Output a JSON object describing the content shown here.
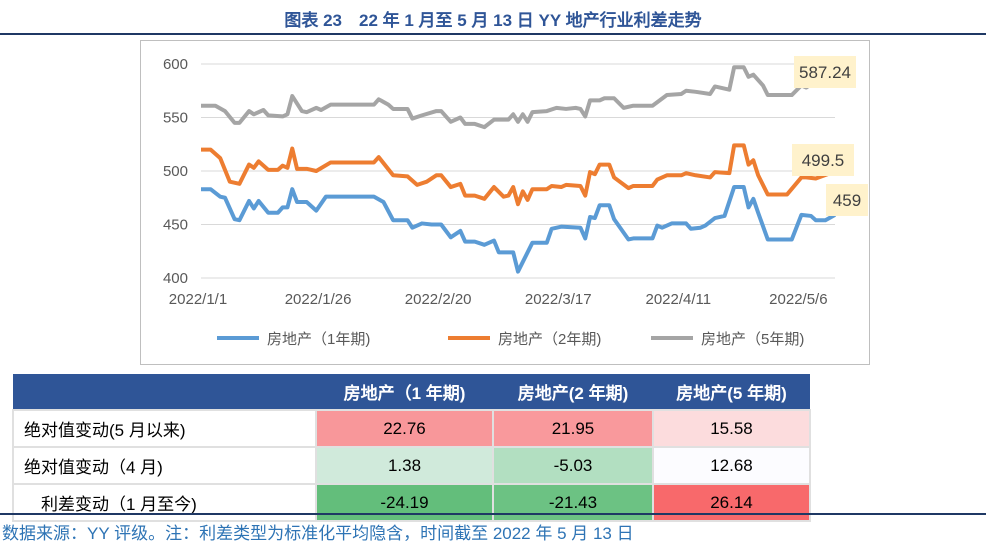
{
  "title": "图表 23　22 年 1 月至 5 月 13 日 YY 地产行业利差走势",
  "chart_data": {
    "type": "line",
    "ylim": [
      400,
      600
    ],
    "yticks": [
      400,
      450,
      500,
      550,
      600
    ],
    "xlim": [
      "2022/1/1",
      "2022/5/13"
    ],
    "xticks": [
      "2022/1/1",
      "2022/1/26",
      "2022/2/20",
      "2022/3/17",
      "2022/4/11",
      "2022/5/6"
    ],
    "grid": true,
    "legend": "bottom",
    "series": [
      {
        "name": "房地产（1年期)",
        "color": "#5b9bd5",
        "end_label": "459",
        "points": [
          [
            "1/1",
            483
          ],
          [
            "1/3",
            483
          ],
          [
            "1/5",
            476
          ],
          [
            "1/6",
            475
          ],
          [
            "1/8",
            455
          ],
          [
            "1/9",
            454
          ],
          [
            "1/11",
            472
          ],
          [
            "1/12",
            465
          ],
          [
            "1/13",
            472
          ],
          [
            "1/15",
            461
          ],
          [
            "1/17",
            461
          ],
          [
            "1/18",
            466
          ],
          [
            "1/19",
            466
          ],
          [
            "1/20",
            483
          ],
          [
            "1/21",
            471
          ],
          [
            "1/23",
            471
          ],
          [
            "1/25",
            463
          ],
          [
            "1/27",
            476
          ],
          [
            "2/6",
            476
          ],
          [
            "2/8",
            471
          ],
          [
            "2/10",
            454
          ],
          [
            "2/13",
            454
          ],
          [
            "2/14",
            447
          ],
          [
            "2/16",
            451
          ],
          [
            "2/18",
            450
          ],
          [
            "2/20",
            450
          ],
          [
            "2/22",
            438
          ],
          [
            "2/24",
            444
          ],
          [
            "2/25",
            434
          ],
          [
            "2/27",
            434
          ],
          [
            "3/1",
            431
          ],
          [
            "3/3",
            435
          ],
          [
            "3/4",
            424
          ],
          [
            "3/7",
            424
          ],
          [
            "3/8",
            406
          ],
          [
            "3/9",
            415
          ],
          [
            "3/11",
            433
          ],
          [
            "3/14",
            433
          ],
          [
            "3/15",
            446
          ],
          [
            "3/17",
            448
          ],
          [
            "3/21",
            447
          ],
          [
            "3/22",
            437
          ],
          [
            "3/23",
            457
          ],
          [
            "3/24",
            456
          ],
          [
            "3/25",
            468
          ],
          [
            "3/27",
            468
          ],
          [
            "3/28",
            455
          ],
          [
            "3/31",
            436
          ],
          [
            "4/1",
            437
          ],
          [
            "4/5",
            437
          ],
          [
            "4/6",
            449
          ],
          [
            "4/7",
            447
          ],
          [
            "4/9",
            451
          ],
          [
            "4/12",
            451
          ],
          [
            "4/13",
            446
          ],
          [
            "4/15",
            447
          ],
          [
            "4/16",
            449
          ],
          [
            "4/18",
            456
          ],
          [
            "4/20",
            458
          ],
          [
            "4/22",
            485
          ],
          [
            "4/24",
            485
          ],
          [
            "4/25",
            466
          ],
          [
            "4/26",
            474
          ],
          [
            "4/27",
            461
          ],
          [
            "4/29",
            436
          ],
          [
            "5/4",
            436
          ],
          [
            "5/6",
            459
          ],
          [
            "5/8",
            458
          ],
          [
            "5/9",
            454
          ],
          [
            "5/11",
            454
          ],
          [
            "5/13",
            459
          ]
        ]
      },
      {
        "name": "房地产（2年期)",
        "color": "#ed7d31",
        "end_label": "499.5",
        "points": [
          [
            "1/1",
            520
          ],
          [
            "1/3",
            520
          ],
          [
            "1/5",
            512
          ],
          [
            "1/7",
            490
          ],
          [
            "1/9",
            488
          ],
          [
            "1/11",
            506
          ],
          [
            "1/12",
            503
          ],
          [
            "1/13",
            509
          ],
          [
            "1/15",
            501
          ],
          [
            "1/17",
            501
          ],
          [
            "1/18",
            505
          ],
          [
            "1/19",
            503
          ],
          [
            "1/20",
            521
          ],
          [
            "1/21",
            502
          ],
          [
            "1/23",
            502
          ],
          [
            "1/25",
            500
          ],
          [
            "1/28",
            508
          ],
          [
            "2/6",
            508
          ],
          [
            "2/7",
            513
          ],
          [
            "2/10",
            496
          ],
          [
            "2/13",
            495
          ],
          [
            "2/15",
            487
          ],
          [
            "2/17",
            490
          ],
          [
            "2/19",
            496
          ],
          [
            "2/20",
            496
          ],
          [
            "2/22",
            485
          ],
          [
            "2/24",
            488
          ],
          [
            "2/25",
            477
          ],
          [
            "2/27",
            477
          ],
          [
            "3/1",
            474
          ],
          [
            "3/3",
            485
          ],
          [
            "3/5",
            476
          ],
          [
            "3/6",
            477
          ],
          [
            "3/7",
            485
          ],
          [
            "3/8",
            469
          ],
          [
            "3/9",
            481
          ],
          [
            "3/10",
            473
          ],
          [
            "3/11",
            483
          ],
          [
            "3/14",
            483
          ],
          [
            "3/15",
            486
          ],
          [
            "3/17",
            485
          ],
          [
            "3/18",
            487
          ],
          [
            "3/21",
            486
          ],
          [
            "3/22",
            477
          ],
          [
            "3/23",
            499
          ],
          [
            "3/24",
            497
          ],
          [
            "3/25",
            506
          ],
          [
            "3/27",
            506
          ],
          [
            "3/28",
            494
          ],
          [
            "3/31",
            484
          ],
          [
            "4/1",
            486
          ],
          [
            "4/5",
            486
          ],
          [
            "4/6",
            492
          ],
          [
            "4/8",
            496
          ],
          [
            "4/11",
            496
          ],
          [
            "4/12",
            498
          ],
          [
            "4/14",
            496
          ],
          [
            "4/17",
            494
          ],
          [
            "4/18",
            499
          ],
          [
            "4/21",
            498
          ],
          [
            "4/22",
            524
          ],
          [
            "4/24",
            524
          ],
          [
            "4/25",
            506
          ],
          [
            "4/26",
            510
          ],
          [
            "4/27",
            496
          ],
          [
            "4/29",
            478
          ],
          [
            "5/3",
            478
          ],
          [
            "5/6",
            494
          ],
          [
            "5/7",
            494
          ],
          [
            "5/9",
            493
          ],
          [
            "5/13",
            499.5
          ]
        ]
      },
      {
        "name": "房地产（5年期)",
        "color": "#a5a5a5",
        "end_label": "587.24",
        "points": [
          [
            "1/1",
            561
          ],
          [
            "1/4",
            561
          ],
          [
            "1/6",
            556
          ],
          [
            "1/8",
            545
          ],
          [
            "1/9",
            545
          ],
          [
            "1/11",
            556
          ],
          [
            "1/12",
            553
          ],
          [
            "1/14",
            557
          ],
          [
            "1/15",
            552
          ],
          [
            "1/18",
            551
          ],
          [
            "1/19",
            553
          ],
          [
            "1/20",
            570
          ],
          [
            "1/22",
            556
          ],
          [
            "1/23",
            555
          ],
          [
            "1/25",
            559
          ],
          [
            "1/26",
            557
          ],
          [
            "1/28",
            562
          ],
          [
            "2/6",
            562
          ],
          [
            "2/7",
            567
          ],
          [
            "2/9",
            562
          ],
          [
            "2/10",
            558
          ],
          [
            "2/13",
            558
          ],
          [
            "2/14",
            549
          ],
          [
            "2/16",
            552
          ],
          [
            "2/19",
            556
          ],
          [
            "2/20",
            556
          ],
          [
            "2/22",
            546
          ],
          [
            "2/24",
            550
          ],
          [
            "2/25",
            544
          ],
          [
            "2/27",
            544
          ],
          [
            "3/1",
            541
          ],
          [
            "3/3",
            548
          ],
          [
            "3/6",
            548
          ],
          [
            "3/7",
            553
          ],
          [
            "3/8",
            546
          ],
          [
            "3/9",
            553
          ],
          [
            "3/10",
            546
          ],
          [
            "3/11",
            555
          ],
          [
            "3/14",
            556
          ],
          [
            "3/16",
            559
          ],
          [
            "3/18",
            558
          ],
          [
            "3/20",
            559
          ],
          [
            "3/21",
            558
          ],
          [
            "3/22",
            551
          ],
          [
            "3/23",
            566
          ],
          [
            "3/25",
            566
          ],
          [
            "3/26",
            568
          ],
          [
            "3/28",
            568
          ],
          [
            "3/30",
            559
          ],
          [
            "4/1",
            561
          ],
          [
            "4/5",
            561
          ],
          [
            "4/8",
            571
          ],
          [
            "4/11",
            572
          ],
          [
            "4/12",
            575
          ],
          [
            "4/14",
            574
          ],
          [
            "4/17",
            572
          ],
          [
            "4/18",
            579
          ],
          [
            "4/21",
            576
          ],
          [
            "4/22",
            597
          ],
          [
            "4/24",
            597
          ],
          [
            "4/25",
            588
          ],
          [
            "4/26",
            590
          ],
          [
            "4/28",
            580
          ],
          [
            "4/29",
            571
          ],
          [
            "5/4",
            571
          ],
          [
            "5/6",
            580
          ],
          [
            "5/7",
            578
          ],
          [
            "5/9",
            584
          ],
          [
            "5/10",
            583
          ],
          [
            "5/12",
            584
          ],
          [
            "5/13",
            587.24
          ]
        ]
      }
    ]
  },
  "legend": [
    "房地产（1年期)",
    "房地产（2年期)",
    "房地产（5年期)"
  ],
  "table": {
    "headers": [
      "",
      "房地产（1 年期)",
      "房地产(2 年期)",
      "房地产(5 年期)"
    ],
    "rows": [
      {
        "label": "绝对值变动(5 月以来)",
        "cells": [
          "22.76",
          "21.95",
          "15.58"
        ],
        "colors": [
          "#f8979a",
          "#f9999c",
          "#fcdcdd"
        ]
      },
      {
        "label": "绝对值变动（4 月)",
        "cells": [
          "1.38",
          "-5.03",
          "12.68"
        ],
        "colors": [
          "#d0eadb",
          "#b2dfc1",
          "#fcfcff"
        ]
      },
      {
        "label": "　利差变动（1 月至今)",
        "cells": [
          "-24.19",
          "-21.43",
          "26.14"
        ],
        "colors": [
          "#63be7b",
          "#6cc283",
          "#f8696b"
        ]
      }
    ]
  },
  "footer": "数据来源：YY 评级。注：利差类型为标准化平均隐含，时间截至 2022 年 5 月 13 日"
}
